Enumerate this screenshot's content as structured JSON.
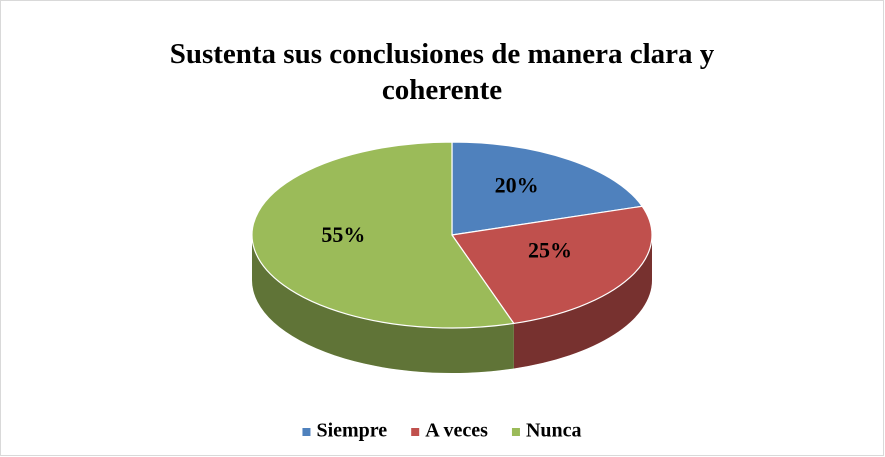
{
  "chart_data": {
    "type": "pie3d",
    "title": "Sustenta sus conclusiones de manera clara y coherente",
    "categories": [
      "Siempre",
      "A veces",
      "Nunca"
    ],
    "values": [
      20,
      25,
      55
    ],
    "value_labels": [
      "20%",
      "25%",
      "55%"
    ],
    "colors": [
      "#4f81bd",
      "#c0504d",
      "#9bbb59"
    ],
    "legend": "bottom"
  }
}
